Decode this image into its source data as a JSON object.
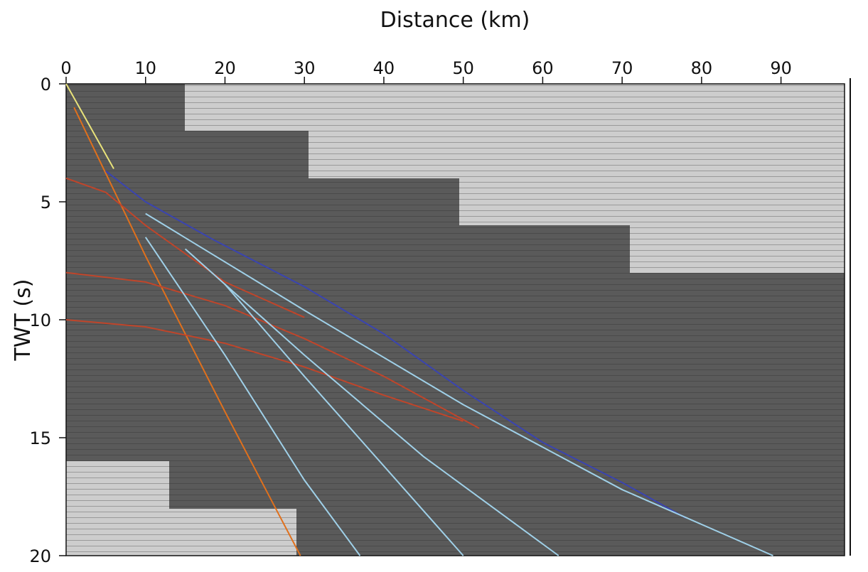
{
  "chart_data": {
    "type": "seismic",
    "title": "Distance (km)",
    "y_label": "TWT (s)",
    "xlim": [
      0,
      98
    ],
    "ylim": [
      0,
      20
    ],
    "xticks": [
      0,
      10,
      20,
      30,
      40,
      50,
      60,
      70,
      80,
      90
    ],
    "yticks": [
      0,
      5,
      10,
      15,
      20
    ],
    "y_inverted": true,
    "series": [
      {
        "color": "#e8e27a",
        "x": [
          0,
          3,
          6
        ],
        "values": [
          0,
          1.8,
          3.6
        ]
      },
      {
        "color": "#e0701c",
        "x": [
          1,
          10,
          20,
          29.5
        ],
        "values": [
          1,
          7.3,
          13.9,
          20
        ]
      },
      {
        "color": "#3a44b0",
        "x": [
          5,
          10,
          18.5,
          30,
          40,
          50,
          60,
          70,
          78
        ],
        "values": [
          3.7,
          5.0,
          6.6,
          8.6,
          10.6,
          13.0,
          15.2,
          16.9,
          18.4
        ]
      },
      {
        "color": "#c0452a",
        "x": [
          0,
          10,
          20,
          30,
          40,
          52
        ],
        "values": [
          8,
          8.4,
          9.4,
          10.8,
          12.4,
          14.6
        ]
      },
      {
        "color": "#c0452a",
        "x": [
          0,
          10,
          20,
          30,
          40,
          50
        ],
        "values": [
          10,
          10.3,
          11.0,
          12.0,
          13.2,
          14.3
        ]
      },
      {
        "color": "#c0452a",
        "x": [
          0,
          5,
          10,
          20,
          30
        ],
        "values": [
          4,
          4.6,
          6.0,
          8.4,
          9.9
        ]
      },
      {
        "color": "#9fd0e8",
        "x": [
          10,
          30,
          50,
          70,
          89
        ],
        "values": [
          5.5,
          9.6,
          13.6,
          17.2,
          20
        ]
      },
      {
        "color": "#9fd0e8",
        "x": [
          15,
          30,
          45,
          62
        ],
        "values": [
          7.0,
          11.5,
          15.8,
          20
        ]
      },
      {
        "color": "#9fd0e8",
        "x": [
          20,
          30,
          40,
          50
        ],
        "values": [
          8.5,
          12.4,
          16.2,
          20
        ]
      },
      {
        "color": "#9fd0e8",
        "x": [
          10,
          20,
          30,
          37
        ],
        "values": [
          6.5,
          11.5,
          16.8,
          20
        ]
      }
    ]
  }
}
